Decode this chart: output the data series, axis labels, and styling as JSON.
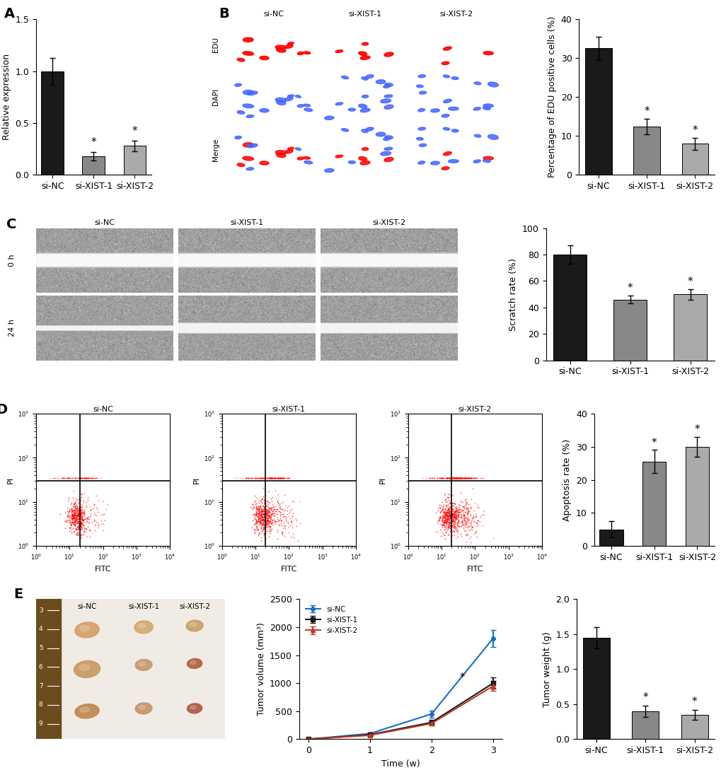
{
  "panel_A": {
    "categories": [
      "si-NC",
      "si-XIST-1",
      "si-XIST-2"
    ],
    "values": [
      1.0,
      0.18,
      0.28
    ],
    "errors": [
      0.13,
      0.04,
      0.05
    ],
    "colors": [
      "#1a1a1a",
      "#888888",
      "#aaaaaa"
    ],
    "ylabel": "Relative expression",
    "ylim": [
      0,
      1.5
    ],
    "yticks": [
      0,
      0.5,
      1.0,
      1.5
    ],
    "sig": [
      false,
      true,
      true
    ]
  },
  "panel_B_bar": {
    "categories": [
      "si-NC",
      "si-XIST-1",
      "si-XIST-2"
    ],
    "values": [
      32.5,
      12.5,
      8.0
    ],
    "errors": [
      3.0,
      2.0,
      1.5
    ],
    "colors": [
      "#1a1a1a",
      "#888888",
      "#aaaaaa"
    ],
    "ylabel": "Percentage of EDU positive cells (%)",
    "ylim": [
      0,
      40
    ],
    "yticks": [
      0,
      10,
      20,
      30,
      40
    ],
    "sig": [
      false,
      true,
      true
    ]
  },
  "panel_C_bar": {
    "categories": [
      "si-NC",
      "si-XIST-1",
      "si-XIST-2"
    ],
    "values": [
      80.0,
      46.0,
      50.0
    ],
    "errors": [
      7.0,
      3.0,
      4.0
    ],
    "colors": [
      "#1a1a1a",
      "#888888",
      "#aaaaaa"
    ],
    "ylabel": "Scratch rate (%)",
    "ylim": [
      0,
      100
    ],
    "yticks": [
      0,
      20,
      40,
      60,
      80,
      100
    ],
    "sig": [
      false,
      true,
      true
    ]
  },
  "panel_D_bar": {
    "categories": [
      "si-NC",
      "si-XIST-1",
      "si-XIST-2"
    ],
    "values": [
      5.0,
      25.5,
      30.0
    ],
    "errors": [
      2.5,
      3.5,
      3.0
    ],
    "colors": [
      "#1a1a1a",
      "#888888",
      "#aaaaaa"
    ],
    "ylabel": "Apoptosis rate (%)",
    "ylim": [
      0,
      40
    ],
    "yticks": [
      0,
      10,
      20,
      30,
      40
    ],
    "sig": [
      false,
      true,
      true
    ]
  },
  "panel_E_line": {
    "x": [
      0,
      1,
      2,
      3
    ],
    "si_NC": [
      0,
      100,
      450,
      1800
    ],
    "si_XIST1": [
      0,
      80,
      300,
      1000
    ],
    "si_XIST2": [
      0,
      70,
      280,
      950
    ],
    "si_NC_err": [
      0,
      20,
      60,
      150
    ],
    "si_XIST1_err": [
      0,
      15,
      40,
      100
    ],
    "si_XIST2_err": [
      0,
      15,
      35,
      90
    ],
    "colors": [
      "#1a6fc4",
      "#1a1a1a",
      "#c0392b"
    ],
    "xlabel": "Time (w)",
    "ylabel": "Tumor volume (mm³)",
    "ylim": [
      0,
      2500
    ],
    "yticks": [
      0,
      500,
      1000,
      1500,
      2000,
      2500
    ],
    "labels": [
      "si-NC",
      "si-XIST-1",
      "si-XIST-2"
    ]
  },
  "panel_E_bar": {
    "categories": [
      "si-NC",
      "si-XIST-1",
      "si-XIST-2"
    ],
    "values": [
      1.45,
      0.4,
      0.35
    ],
    "errors": [
      0.15,
      0.08,
      0.07
    ],
    "colors": [
      "#1a1a1a",
      "#888888",
      "#aaaaaa"
    ],
    "ylabel": "Tumor weight (g)",
    "ylim": [
      0,
      2.0
    ],
    "yticks": [
      0.0,
      0.5,
      1.0,
      1.5,
      2.0
    ],
    "sig": [
      false,
      true,
      true
    ]
  },
  "label_fontsize": 14,
  "tick_fontsize": 9,
  "axis_label_fontsize": 9,
  "bar_width": 0.55,
  "background_color": "#ffffff"
}
